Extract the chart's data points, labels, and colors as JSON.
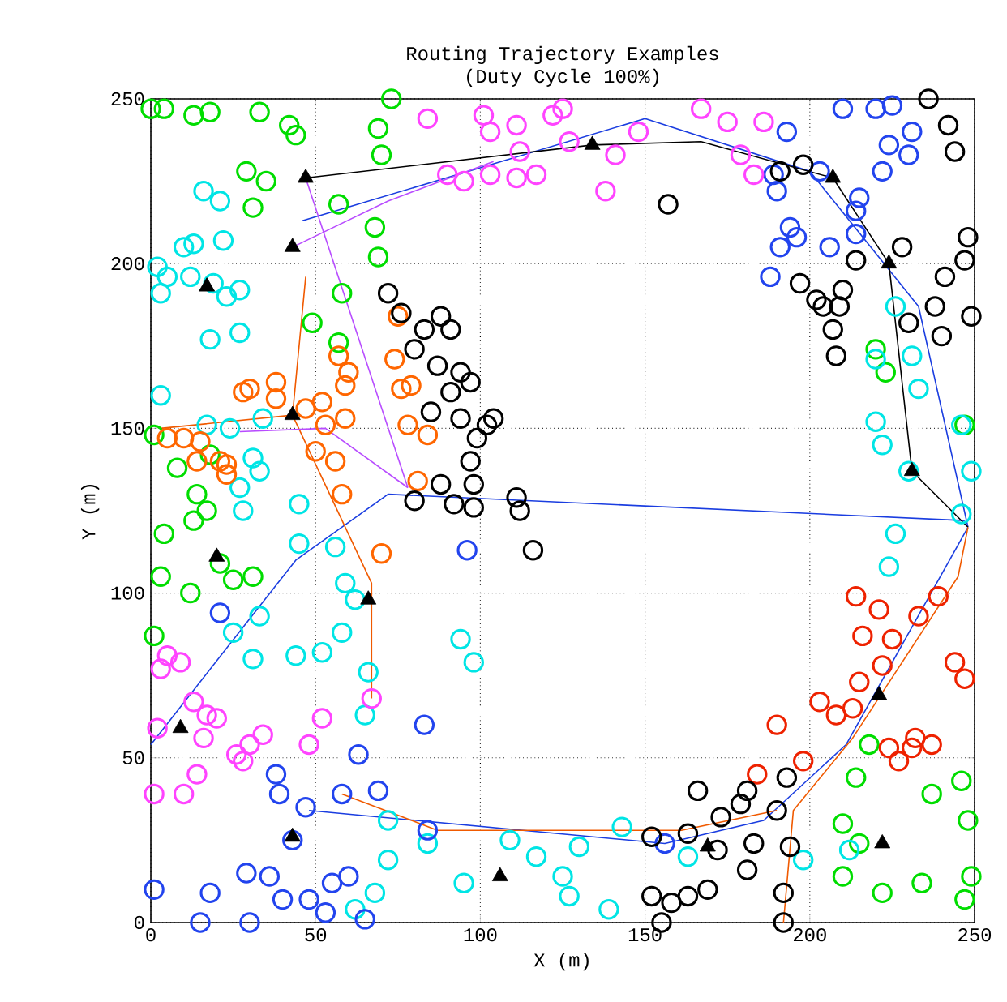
{
  "chart_data": {
    "type": "scatter",
    "title": "Routing Trajectory Examples",
    "subtitle": "(Duty Cycle 100%)",
    "xlabel": "X (m)",
    "ylabel": "Y (m)",
    "xlim": [
      0,
      250
    ],
    "ylim": [
      0,
      250
    ],
    "xticks": [
      0,
      50,
      100,
      150,
      200,
      250
    ],
    "yticks": [
      0,
      50,
      100,
      150,
      200,
      250
    ],
    "grid": true,
    "marker": "circle",
    "series": [
      {
        "color": "#00dd00",
        "x": [
          0,
          4,
          13,
          18,
          33,
          44,
          42,
          73,
          69,
          70,
          29,
          35,
          31,
          57,
          68,
          69,
          58,
          49,
          57,
          1,
          8,
          18,
          14,
          17,
          13,
          4,
          3,
          12,
          21,
          25,
          31,
          1,
          220,
          223,
          247,
          218,
          214,
          215,
          210,
          222,
          234,
          248,
          246,
          237,
          249,
          247,
          210
        ],
        "values": [
          247,
          247,
          245,
          246,
          246,
          239,
          242,
          250,
          241,
          233,
          228,
          225,
          217,
          218,
          211,
          202,
          191,
          182,
          176,
          148,
          138,
          142,
          130,
          125,
          122,
          118,
          105,
          100,
          109,
          104,
          105,
          87,
          174,
          167,
          151,
          54,
          44,
          24,
          14,
          9,
          12,
          31,
          43,
          39,
          14,
          7,
          30
        ]
      },
      {
        "color": "#00e5e5",
        "x": [
          2,
          5,
          3,
          10,
          13,
          16,
          21,
          22,
          12,
          19,
          23,
          27,
          18,
          27,
          3,
          17,
          24,
          31,
          34,
          33,
          27,
          28,
          45,
          45,
          56,
          59,
          62,
          58,
          52,
          44,
          31,
          33,
          25,
          66,
          65,
          72,
          72,
          68,
          62,
          84,
          95,
          109,
          117,
          125,
          127,
          130,
          143,
          139,
          163,
          220,
          226,
          231,
          233,
          220,
          222,
          230,
          226,
          224,
          246,
          249,
          246,
          198,
          212,
          94,
          98
        ],
        "values": [
          199,
          196,
          191,
          205,
          206,
          222,
          219,
          207,
          196,
          194,
          190,
          179,
          177,
          192,
          160,
          151,
          150,
          141,
          153,
          137,
          132,
          125,
          127,
          115,
          114,
          103,
          98,
          88,
          82,
          81,
          80,
          93,
          88,
          76,
          63,
          31,
          19,
          9,
          4,
          24,
          12,
          25,
          20,
          14,
          8,
          23,
          29,
          4,
          20,
          171,
          187,
          172,
          162,
          152,
          145,
          137,
          118,
          108,
          151,
          137,
          124,
          19,
          22,
          86,
          79
        ]
      },
      {
        "color": "#2244ee",
        "x": [
          1,
          18,
          15,
          30,
          29,
          36,
          40,
          48,
          55,
          60,
          63,
          69,
          83,
          39,
          47,
          43,
          58,
          21,
          38,
          84,
          53,
          65,
          96,
          156,
          193,
          210,
          203,
          190,
          194,
          196,
          191,
          188,
          206,
          215,
          214,
          214,
          222,
          224,
          230,
          231,
          225,
          220,
          189
        ],
        "values": [
          10,
          9,
          0,
          0,
          15,
          14,
          7,
          7,
          12,
          14,
          51,
          40,
          60,
          39,
          35,
          25,
          39,
          94,
          45,
          28,
          3,
          1,
          113,
          24,
          240,
          247,
          228,
          222,
          211,
          208,
          205,
          196,
          205,
          220,
          216,
          209,
          228,
          236,
          233,
          240,
          248,
          247,
          227
        ]
      },
      {
        "color": "#ff44ff",
        "x": [
          84,
          101,
          103,
          111,
          122,
          125,
          112,
          117,
          111,
          103,
          95,
          90,
          138,
          127,
          141,
          148,
          167,
          175,
          186,
          179,
          183,
          5,
          3,
          9,
          13,
          17,
          20,
          16,
          2,
          1,
          10,
          14,
          26,
          28,
          30,
          34,
          52,
          48,
          67
        ],
        "values": [
          244,
          245,
          240,
          242,
          245,
          247,
          234,
          227,
          226,
          227,
          225,
          227,
          222,
          237,
          233,
          240,
          247,
          243,
          243,
          233,
          227,
          81,
          77,
          79,
          67,
          63,
          62,
          56,
          59,
          39,
          39,
          45,
          51,
          49,
          54,
          57,
          62,
          54,
          68
        ]
      },
      {
        "color": "#ff6600",
        "x": [
          5,
          10,
          15,
          21,
          23,
          23,
          14,
          38,
          38,
          30,
          28,
          47,
          52,
          53,
          59,
          50,
          56,
          58,
          60,
          59,
          57,
          75,
          74,
          79,
          76,
          78,
          84,
          81,
          70
        ],
        "values": [
          147,
          147,
          146,
          140,
          139,
          136,
          140,
          164,
          159,
          162,
          161,
          156,
          158,
          151,
          153,
          143,
          140,
          130,
          167,
          163,
          172,
          184,
          171,
          163,
          162,
          151,
          148,
          134,
          112
        ]
      },
      {
        "color": "#ee2200",
        "x": [
          214,
          221,
          216,
          225,
          222,
          215,
          213,
          208,
          203,
          190,
          184,
          198,
          231,
          232,
          237,
          227,
          224,
          233,
          244,
          247,
          239
        ],
        "values": [
          99,
          95,
          87,
          86,
          78,
          73,
          65,
          63,
          67,
          60,
          45,
          49,
          53,
          56,
          54,
          49,
          53,
          93,
          79,
          74,
          99
        ]
      },
      {
        "color": "#000000",
        "x": [
          72,
          76,
          83,
          88,
          91,
          80,
          87,
          94,
          97,
          91,
          85,
          94,
          102,
          104,
          99,
          97,
          98,
          88,
          80,
          92,
          111,
          112,
          116,
          98,
          236,
          242,
          244,
          248,
          249,
          238,
          240,
          230,
          241,
          247,
          228,
          214,
          210,
          209,
          204,
          197,
          202,
          207,
          208,
          191,
          198,
          157,
          152,
          163,
          166,
          172,
          173,
          169,
          163,
          158,
          155,
          152,
          183,
          190,
          193,
          192,
          181,
          179,
          181,
          194,
          192
        ],
        "values": [
          191,
          185,
          180,
          184,
          180,
          174,
          169,
          167,
          164,
          161,
          155,
          153,
          151,
          153,
          147,
          140,
          133,
          133,
          128,
          127,
          129,
          125,
          113,
          126,
          250,
          242,
          234,
          208,
          184,
          187,
          178,
          182,
          196,
          201,
          205,
          201,
          192,
          187,
          187,
          194,
          189,
          180,
          172,
          228,
          230,
          218,
          26,
          27,
          40,
          22,
          32,
          10,
          8,
          6,
          0,
          8,
          24,
          34,
          44,
          9,
          16,
          36,
          40,
          23,
          0
        ]
      },
      {
        "color": "#000000",
        "marker": "triangle",
        "x": [
          17,
          43,
          47,
          43,
          20,
          9,
          43,
          66,
          134,
          106,
          224,
          231,
          221,
          222,
          207,
          169
        ],
        "values": [
          193,
          205,
          226,
          154,
          111,
          59,
          26,
          98,
          236,
          14,
          200,
          137,
          69,
          24,
          226,
          23
        ]
      },
      {
        "type": "line",
        "marker": "none",
        "color": "#1a3de0",
        "x": [
          46,
          150,
          200,
          233,
          248
        ],
        "values": [
          213,
          244,
          228,
          187,
          120
        ]
      },
      {
        "type": "line",
        "marker": "none",
        "color": "#1a3de0",
        "x": [
          0,
          44,
          72,
          247
        ],
        "values": [
          54,
          110,
          130,
          122
        ]
      },
      {
        "type": "line",
        "marker": "none",
        "color": "#1a3de0",
        "x": [
          48,
          156,
          186,
          211,
          248
        ],
        "values": [
          34,
          24,
          31,
          54,
          120
        ]
      },
      {
        "type": "line",
        "marker": "none",
        "color": "#000000",
        "x": [
          47,
          134,
          167,
          207,
          224,
          231,
          248
        ],
        "values": [
          226,
          236,
          237,
          226,
          200,
          137,
          120
        ]
      },
      {
        "type": "line",
        "marker": "none",
        "color": "#f05a00",
        "x": [
          3,
          43,
          47
        ],
        "values": [
          150,
          154,
          196
        ]
      },
      {
        "type": "line",
        "marker": "none",
        "color": "#f05a00",
        "x": [
          43,
          67,
          67
        ],
        "values": [
          154,
          103,
          68
        ]
      },
      {
        "type": "line",
        "marker": "none",
        "color": "#f05a00",
        "x": [
          192,
          195,
          213,
          245,
          248
        ],
        "values": [
          0,
          34,
          56,
          105,
          120
        ]
      },
      {
        "type": "line",
        "marker": "none",
        "color": "#f05a00",
        "x": [
          58,
          87,
          161,
          190
        ],
        "values": [
          39,
          28,
          28,
          34
        ]
      },
      {
        "type": "line",
        "marker": "none",
        "color": "#b84cff",
        "x": [
          43,
          72,
          104
        ],
        "values": [
          205,
          219,
          231
        ]
      },
      {
        "type": "line",
        "marker": "none",
        "color": "#b84cff",
        "x": [
          47,
          78
        ],
        "values": [
          226,
          132
        ]
      },
      {
        "type": "line",
        "marker": "none",
        "color": "#b84cff",
        "x": [
          27,
          53,
          78
        ],
        "values": [
          149,
          150,
          132
        ]
      }
    ]
  }
}
